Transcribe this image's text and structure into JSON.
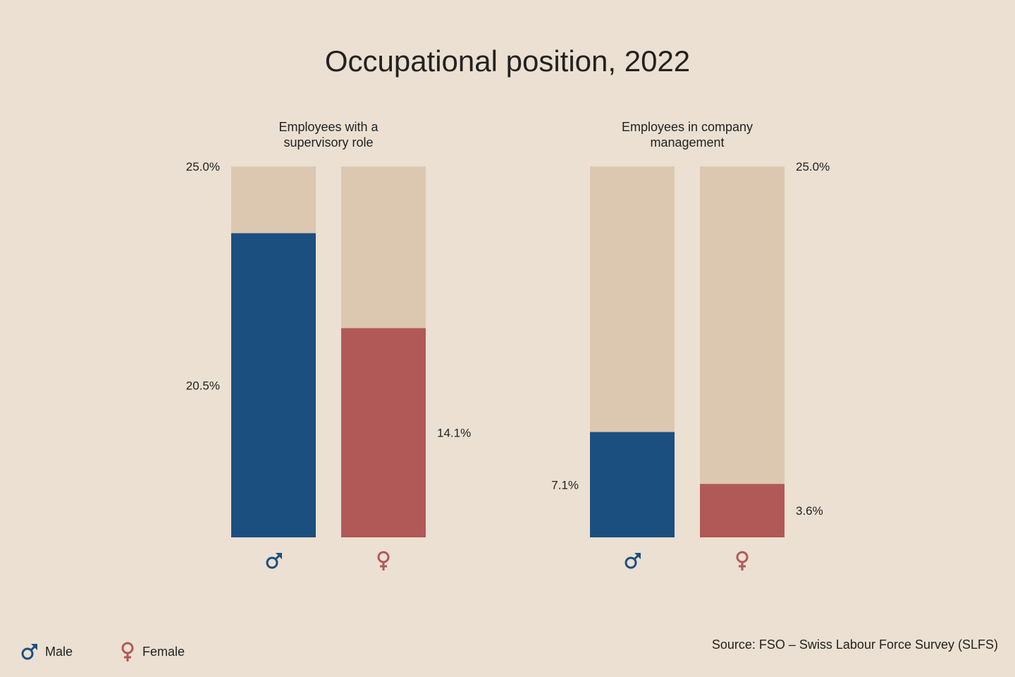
{
  "title": "Occupational position, 2022",
  "colors": {
    "background": "#ebe0d1",
    "track": "#dcc8b1",
    "male": "#1b4f80",
    "female": "#b15957",
    "text": "#222222"
  },
  "chart_data": {
    "type": "bar",
    "title": "Occupational position, 2022",
    "ylim": [
      0,
      25
    ],
    "unit": "%",
    "panels": [
      {
        "title_lines": [
          "Employees with a",
          "supervisory role"
        ],
        "max_label": "25.0%",
        "bars": [
          {
            "series": "Male",
            "icon": "male-symbol-icon",
            "value": 20.5,
            "label": "20.5%"
          },
          {
            "series": "Female",
            "icon": "female-symbol-icon",
            "value": 14.1,
            "label": "14.1%"
          }
        ]
      },
      {
        "title_lines": [
          "Employees in company",
          "management"
        ],
        "max_label": "25.0%",
        "bars": [
          {
            "series": "Male",
            "icon": "male-symbol-icon",
            "value": 7.1,
            "label": "7.1%"
          },
          {
            "series": "Female",
            "icon": "female-symbol-icon",
            "value": 3.6,
            "label": "3.6%"
          }
        ]
      }
    ]
  },
  "legend": [
    {
      "label": "Male",
      "icon": "male-symbol-icon",
      "color": "#1b4f80"
    },
    {
      "label": "Female",
      "icon": "female-symbol-icon",
      "color": "#b15957"
    }
  ],
  "source": "Source: FSO – Swiss Labour Force Survey (SLFS)"
}
